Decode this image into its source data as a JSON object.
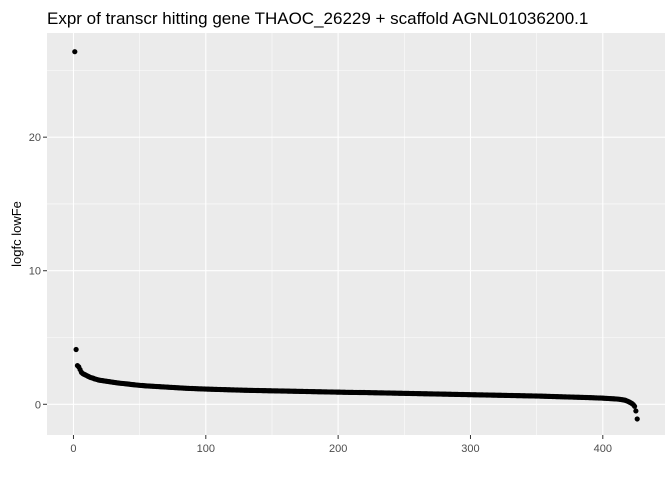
{
  "chart_data": {
    "type": "scatter",
    "title": "Expr of transcr hitting gene THAOC_26229 + scaffold AGNL01036200.1",
    "xlabel": "",
    "ylabel": "logfc lowFe",
    "xlim": [
      -20,
      447
    ],
    "ylim": [
      -2.3,
      27.8
    ],
    "x_ticks": [
      0,
      100,
      200,
      300,
      400
    ],
    "x_tick_labels": [
      "0",
      "100",
      "200",
      "300",
      "400"
    ],
    "y_ticks": [
      0,
      10,
      20
    ],
    "y_tick_labels": [
      "0",
      "10",
      "20"
    ],
    "grid": true,
    "point_color": "#000000",
    "panel_background": "#ebebeb",
    "points": [
      [
        1,
        26.4
      ],
      [
        2,
        4.1
      ],
      [
        3,
        2.9
      ],
      [
        4,
        2.8
      ],
      [
        5,
        2.6
      ],
      [
        6,
        2.4
      ],
      [
        7,
        2.3
      ],
      [
        8,
        2.25
      ],
      [
        9,
        2.2
      ],
      [
        10,
        2.15
      ],
      [
        11,
        2.1
      ],
      [
        12,
        2.05
      ],
      [
        13,
        2.0
      ],
      [
        14,
        1.98
      ],
      [
        15,
        1.95
      ],
      [
        16,
        1.9
      ],
      [
        17,
        1.88
      ],
      [
        18,
        1.85
      ],
      [
        19,
        1.82
      ],
      [
        20,
        1.8
      ],
      [
        22,
        1.77
      ],
      [
        24,
        1.74
      ],
      [
        26,
        1.71
      ],
      [
        28,
        1.68
      ],
      [
        30,
        1.65
      ],
      [
        32,
        1.62
      ],
      [
        35,
        1.58
      ],
      [
        38,
        1.55
      ],
      [
        41,
        1.52
      ],
      [
        44,
        1.48
      ],
      [
        47,
        1.45
      ],
      [
        50,
        1.42
      ],
      [
        55,
        1.38
      ],
      [
        60,
        1.35
      ],
      [
        65,
        1.32
      ],
      [
        70,
        1.29
      ],
      [
        75,
        1.26
      ],
      [
        80,
        1.23
      ],
      [
        85,
        1.2
      ],
      [
        90,
        1.18
      ],
      [
        95,
        1.16
      ],
      [
        100,
        1.14
      ],
      [
        110,
        1.11
      ],
      [
        120,
        1.08
      ],
      [
        130,
        1.05
      ],
      [
        140,
        1.03
      ],
      [
        150,
        1.01
      ],
      [
        160,
        0.99
      ],
      [
        170,
        0.97
      ],
      [
        180,
        0.95
      ],
      [
        190,
        0.93
      ],
      [
        200,
        0.91
      ],
      [
        210,
        0.89
      ],
      [
        220,
        0.88
      ],
      [
        230,
        0.86
      ],
      [
        240,
        0.84
      ],
      [
        250,
        0.82
      ],
      [
        260,
        0.8
      ],
      [
        270,
        0.78
      ],
      [
        280,
        0.76
      ],
      [
        290,
        0.74
      ],
      [
        300,
        0.72
      ],
      [
        310,
        0.7
      ],
      [
        320,
        0.68
      ],
      [
        330,
        0.66
      ],
      [
        340,
        0.64
      ],
      [
        350,
        0.62
      ],
      [
        360,
        0.59
      ],
      [
        370,
        0.56
      ],
      [
        380,
        0.53
      ],
      [
        390,
        0.5
      ],
      [
        400,
        0.46
      ],
      [
        405,
        0.43
      ],
      [
        410,
        0.4
      ],
      [
        413,
        0.37
      ],
      [
        415,
        0.34
      ],
      [
        417,
        0.3
      ],
      [
        418,
        0.26
      ],
      [
        419,
        0.22
      ],
      [
        420,
        0.17
      ],
      [
        421,
        0.12
      ],
      [
        422,
        0.06
      ],
      [
        423,
        -0.02
      ],
      [
        424,
        -0.15
      ],
      [
        425,
        -0.5
      ],
      [
        426,
        -1.1
      ]
    ]
  }
}
